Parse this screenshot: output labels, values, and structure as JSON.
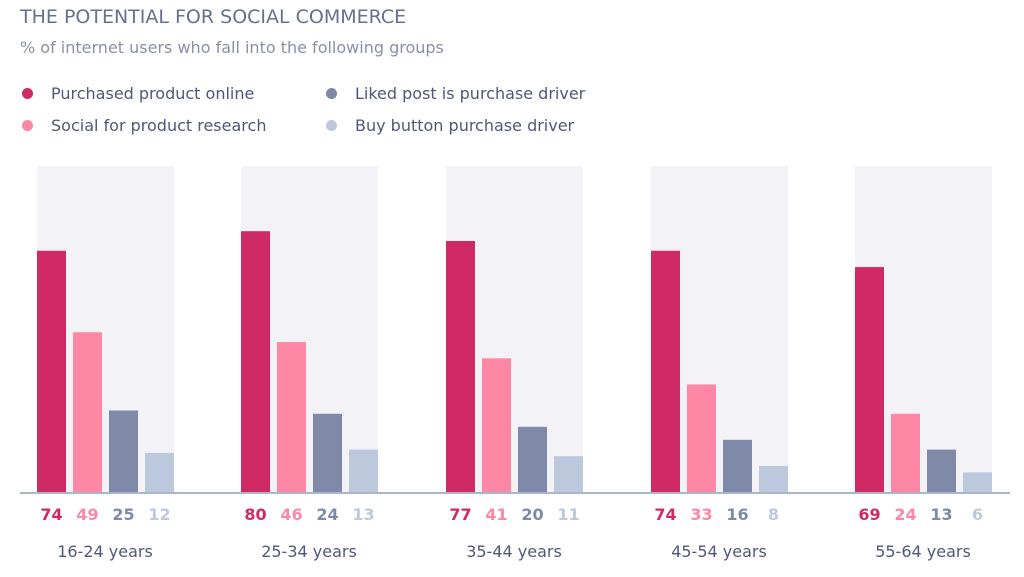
{
  "chart_data": {
    "type": "bar",
    "title": "THE POTENTIAL FOR SOCIAL COMMERCE",
    "subtitle": "% of internet users who fall into the following groups",
    "categories": [
      "16-24 years",
      "25-34 years",
      "35-44 years",
      "45-54 years",
      "55-64 years"
    ],
    "series": [
      {
        "name": "Purchased product online",
        "color": "#d02a65",
        "values": [
          74,
          80,
          77,
          74,
          69
        ]
      },
      {
        "name": "Social for product research",
        "color": "#fd87a5",
        "values": [
          49,
          46,
          41,
          33,
          24
        ]
      },
      {
        "name": "Liked post is purchase driver",
        "color": "#7e8aa8",
        "values": [
          25,
          24,
          20,
          16,
          13
        ]
      },
      {
        "name": "Buy button purchase driver",
        "color": "#bcc9dd",
        "values": [
          12,
          13,
          11,
          8,
          6
        ]
      }
    ],
    "ylim": [
      0,
      100
    ],
    "group_background": "#f2f2f7",
    "axis_color": "#a9b5cd",
    "legend_position": "top-left",
    "grid": false
  }
}
